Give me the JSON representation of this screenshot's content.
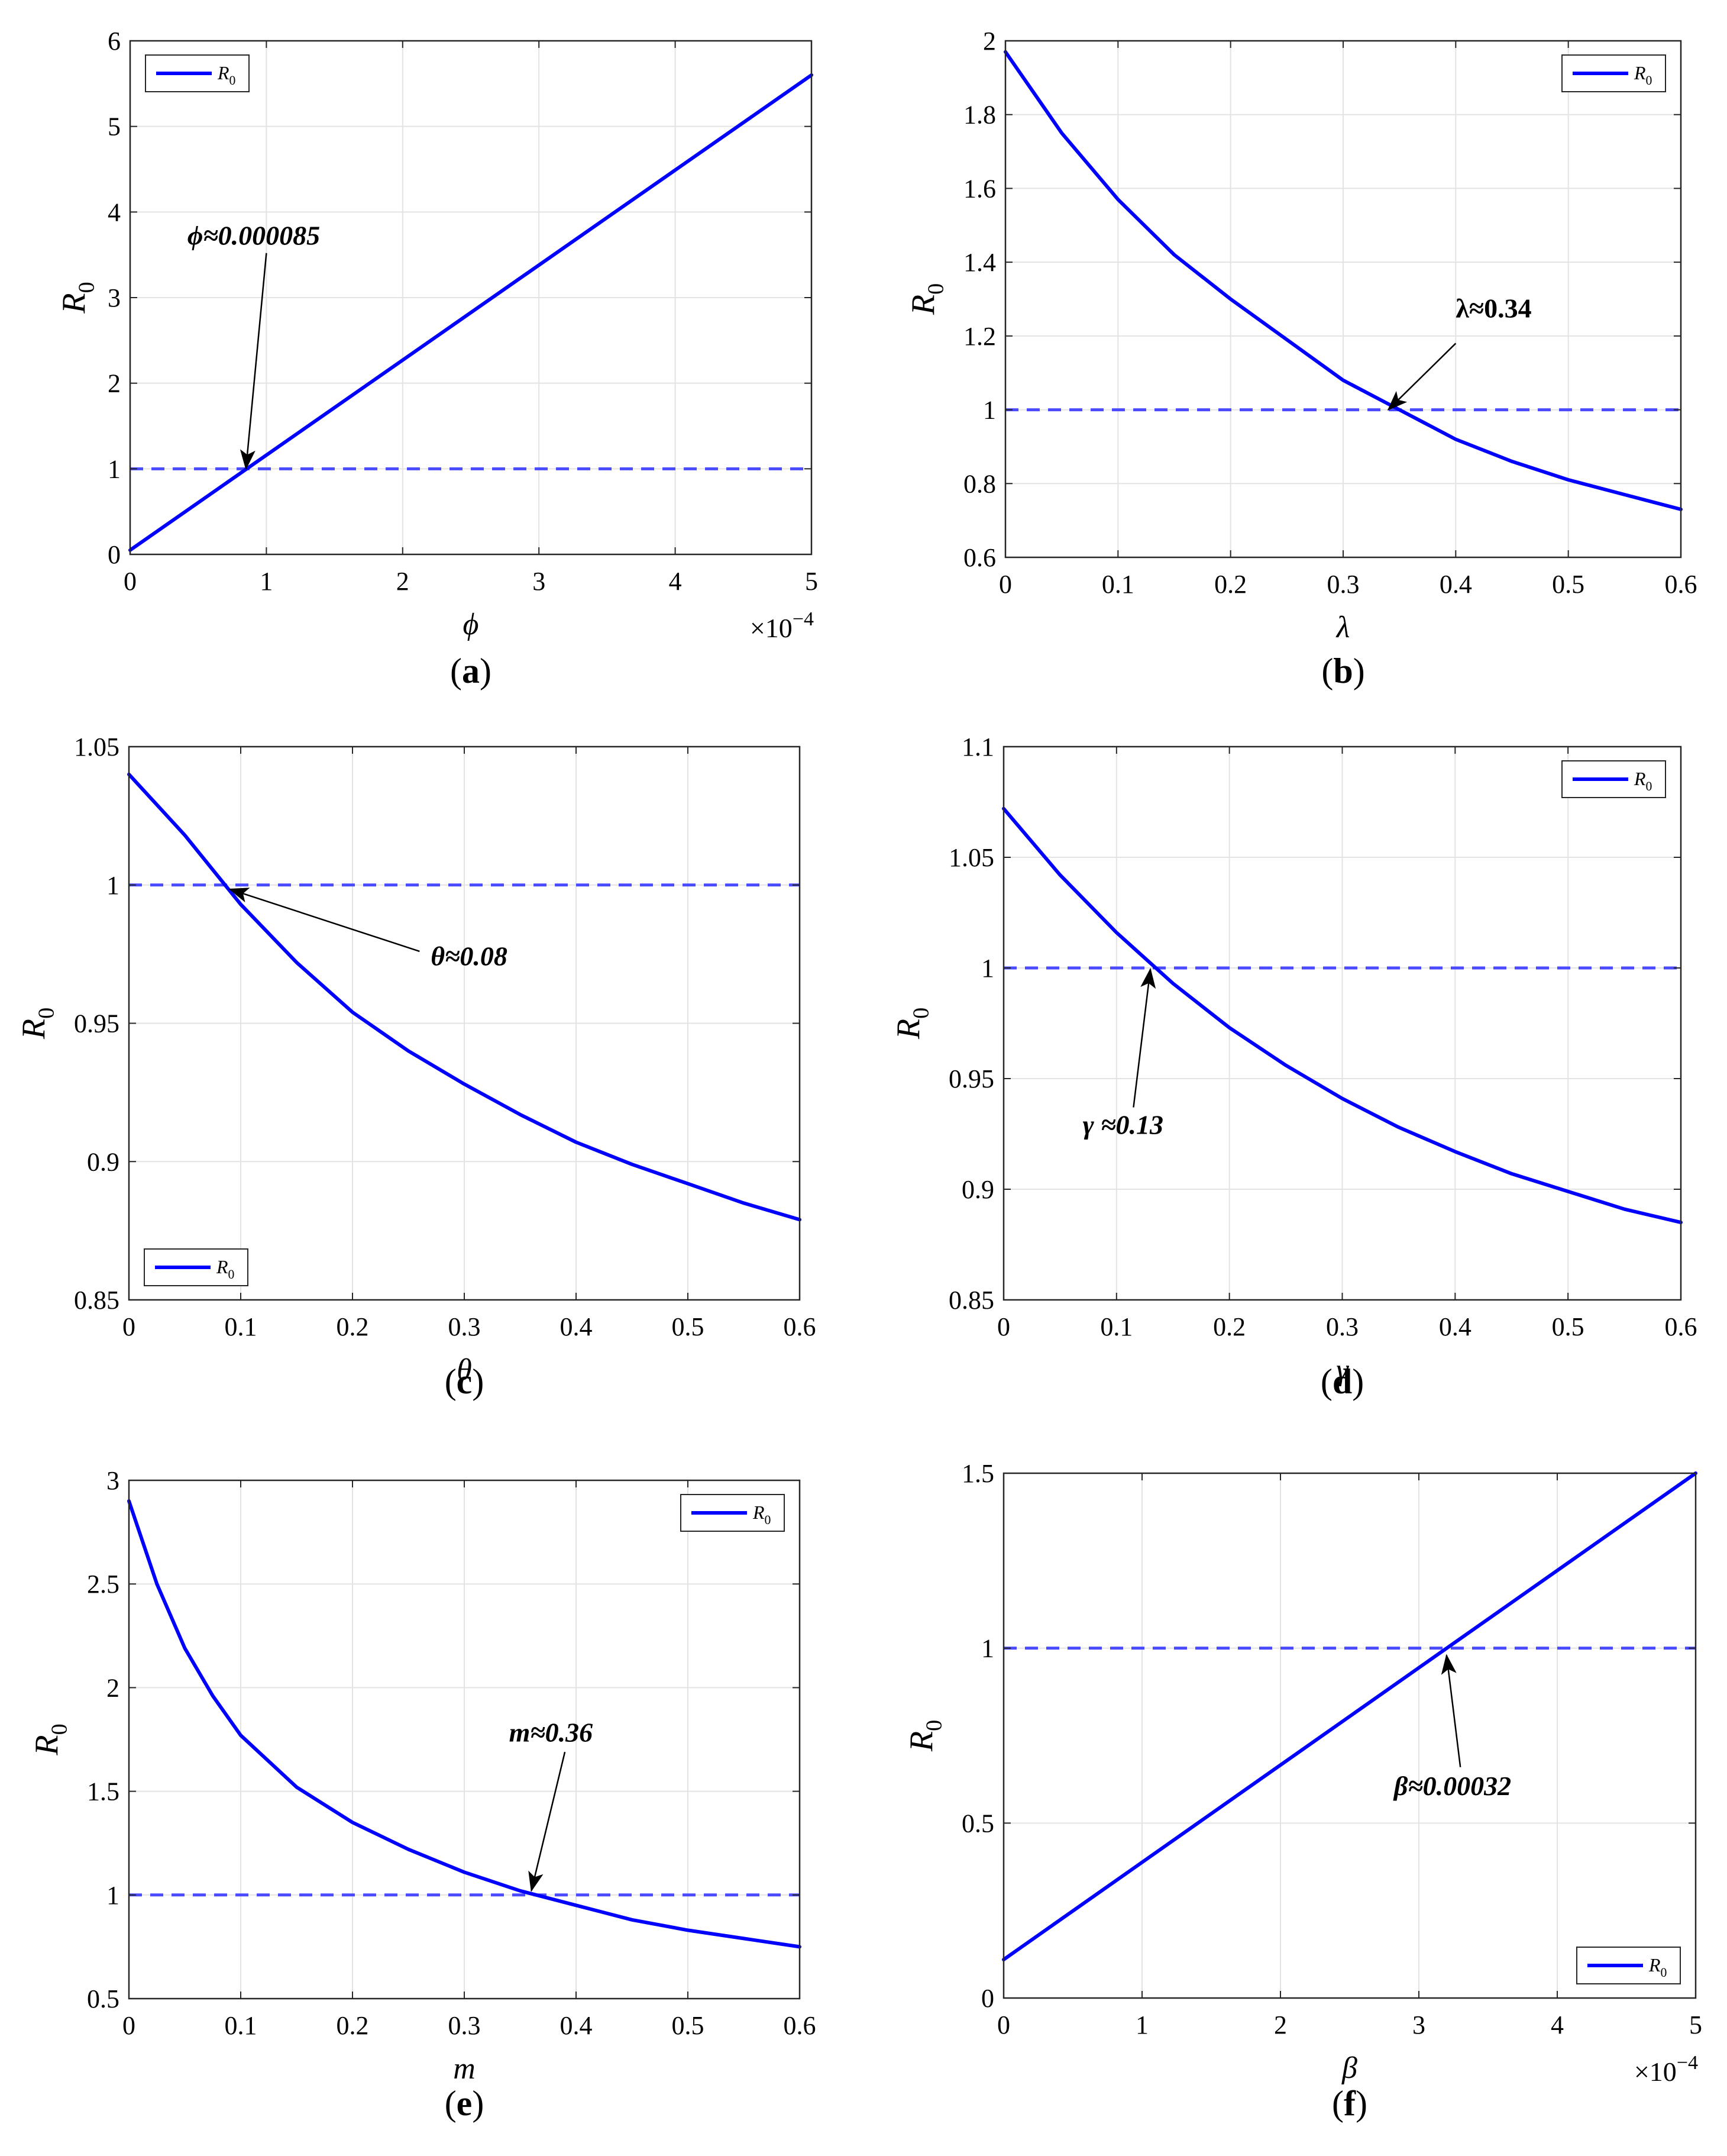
{
  "figure_colors": {
    "line": "#0000ff",
    "threshold": "#4a4aff",
    "grid": "#e3e3e3",
    "axis": "#262626",
    "arrow": "#000000"
  },
  "chart_data": [
    {
      "panel": "(a)",
      "type": "line",
      "title": "",
      "xlabel": "ϕ",
      "ylabel": "R0",
      "x_multiplier": "×10^-4",
      "xlim": [
        0,
        5
      ],
      "ylim": [
        0,
        6
      ],
      "xticks": [
        0,
        1,
        2,
        3,
        4,
        5
      ],
      "xtick_labels": [
        "0",
        "1",
        "2",
        "3",
        "4",
        "5"
      ],
      "yticks": [
        0,
        1,
        2,
        3,
        4,
        5,
        6
      ],
      "ytick_labels": [
        "0",
        "1",
        "2",
        "3",
        "4",
        "5",
        "6"
      ],
      "grid": true,
      "legend": {
        "label": "R0",
        "position": "top-left"
      },
      "series": [
        {
          "name": "R0",
          "x": [
            0,
            5
          ],
          "y": [
            0.05,
            5.6
          ]
        }
      ],
      "threshold": {
        "y": 1,
        "style": "dashed"
      },
      "annotation": {
        "label": "ϕ≈0.000085",
        "point": [
          0.85,
          1.0
        ],
        "text_at": [
          0.95,
          3.7
        ],
        "style": "bold-italic"
      }
    },
    {
      "panel": "(b)",
      "type": "line",
      "title": "",
      "xlabel": "λ",
      "ylabel": "R0",
      "xlim": [
        0,
        0.6
      ],
      "ylim": [
        0.6,
        2.0
      ],
      "xticks": [
        0,
        0.1,
        0.2,
        0.3,
        0.4,
        0.5,
        0.6
      ],
      "xtick_labels": [
        "0",
        "0.1",
        "0.2",
        "0.3",
        "0.4",
        "0.5",
        "0.6"
      ],
      "yticks": [
        0.6,
        0.8,
        1.0,
        1.2,
        1.4,
        1.6,
        1.8,
        2.0
      ],
      "ytick_labels": [
        "0.6",
        "0.8",
        "1",
        "1.2",
        "1.4",
        "1.6",
        "1.8",
        "2"
      ],
      "grid": true,
      "legend": {
        "label": "R0",
        "position": "top-right"
      },
      "series": [
        {
          "name": "R0",
          "x": [
            0,
            0.05,
            0.1,
            0.15,
            0.2,
            0.25,
            0.3,
            0.35,
            0.4,
            0.45,
            0.5,
            0.55,
            0.6
          ],
          "y": [
            1.97,
            1.75,
            1.57,
            1.42,
            1.3,
            1.19,
            1.08,
            1.0,
            0.92,
            0.86,
            0.81,
            0.77,
            0.73
          ]
        }
      ],
      "threshold": {
        "y": 1,
        "style": "dashed"
      },
      "annotation": {
        "label": "λ≈0.34",
        "point": [
          0.34,
          1.0
        ],
        "text_at": [
          0.44,
          1.28
        ],
        "style": "bold"
      }
    },
    {
      "panel": "(c)",
      "type": "line",
      "title": "",
      "xlabel": "θ",
      "ylabel": "R0",
      "xlim": [
        0,
        0.6
      ],
      "ylim": [
        0.85,
        1.05
      ],
      "xticks": [
        0,
        0.1,
        0.2,
        0.3,
        0.4,
        0.5,
        0.6
      ],
      "xtick_labels": [
        "0",
        "0.1",
        "0.2",
        "0.3",
        "0.4",
        "0.5",
        "0.6"
      ],
      "yticks": [
        0.85,
        0.9,
        0.95,
        1.0,
        1.05
      ],
      "ytick_labels": [
        "0.85",
        "0.9",
        "0.95",
        "1",
        "1.05"
      ],
      "grid": true,
      "legend": {
        "label": "R0",
        "position": "bottom-left"
      },
      "series": [
        {
          "name": "R0",
          "x": [
            0,
            0.05,
            0.1,
            0.15,
            0.2,
            0.25,
            0.3,
            0.35,
            0.4,
            0.45,
            0.5,
            0.55,
            0.6
          ],
          "y": [
            1.04,
            1.018,
            0.993,
            0.972,
            0.954,
            0.94,
            0.928,
            0.917,
            0.907,
            0.899,
            0.892,
            0.885,
            0.879
          ]
        }
      ],
      "threshold": {
        "y": 1,
        "style": "dashed"
      },
      "annotation": {
        "label": "θ≈0.08",
        "point": [
          0.09,
          0.9985
        ],
        "text_at": [
          0.27,
          0.987
        ],
        "style": "bold-italic"
      }
    },
    {
      "panel": "(d)",
      "type": "line",
      "title": "",
      "xlabel": "γ",
      "ylabel": "R0",
      "xlim": [
        0,
        0.6
      ],
      "ylim": [
        0.85,
        1.1
      ],
      "xticks": [
        0,
        0.1,
        0.2,
        0.3,
        0.4,
        0.5,
        0.6
      ],
      "xtick_labels": [
        "0",
        "0.1",
        "0.2",
        "0.3",
        "0.4",
        "0.5",
        "0.6"
      ],
      "yticks": [
        0.85,
        0.9,
        0.95,
        1.0,
        1.05,
        1.1
      ],
      "ytick_labels": [
        "0.85",
        "0.9",
        "0.95",
        "1",
        "1.05",
        "1.1"
      ],
      "grid": true,
      "legend": {
        "label": "R0",
        "position": "top-right"
      },
      "series": [
        {
          "name": "R0",
          "x": [
            0,
            0.05,
            0.1,
            0.15,
            0.2,
            0.25,
            0.3,
            0.35,
            0.4,
            0.45,
            0.5,
            0.55,
            0.6
          ],
          "y": [
            1.072,
            1.042,
            1.016,
            0.993,
            0.973,
            0.956,
            0.941,
            0.928,
            0.917,
            0.907,
            0.899,
            0.891,
            0.885
          ]
        }
      ],
      "threshold": {
        "y": 1,
        "style": "dashed"
      },
      "annotation": {
        "label": "γ ≈0.13",
        "point": [
          0.13,
          0.9995
        ],
        "text_at": [
          0.115,
          0.929
        ],
        "style": "bold-italic"
      }
    },
    {
      "panel": "(e)",
      "type": "line",
      "title": "",
      "xlabel": "m",
      "ylabel": "R0",
      "xlim": [
        0,
        0.6
      ],
      "ylim": [
        0.5,
        3.0
      ],
      "xticks": [
        0,
        0.1,
        0.2,
        0.3,
        0.4,
        0.5,
        0.6
      ],
      "xtick_labels": [
        "0",
        "0.1",
        "0.2",
        "0.3",
        "0.4",
        "0.5",
        "0.6"
      ],
      "yticks": [
        0.5,
        1.0,
        1.5,
        2.0,
        2.5,
        3.0
      ],
      "ytick_labels": [
        "0.5",
        "1",
        "1.5",
        "2",
        "2.5",
        "3"
      ],
      "grid": true,
      "legend": {
        "label": "R0",
        "position": "top-right"
      },
      "series": [
        {
          "name": "R0",
          "x": [
            0,
            0.025,
            0.05,
            0.075,
            0.1,
            0.15,
            0.2,
            0.25,
            0.3,
            0.35,
            0.4,
            0.45,
            0.5,
            0.55,
            0.6
          ],
          "y": [
            2.9,
            2.5,
            2.19,
            1.96,
            1.77,
            1.52,
            1.35,
            1.22,
            1.11,
            1.02,
            0.95,
            0.88,
            0.83,
            0.79,
            0.75
          ]
        }
      ],
      "threshold": {
        "y": 1,
        "style": "dashed"
      },
      "annotation": {
        "label": "m≈0.36",
        "point": [
          0.36,
          1.02
        ],
        "text_at": [
          0.38,
          1.8
        ],
        "style": "bold-italic"
      }
    },
    {
      "panel": "(f)",
      "type": "line",
      "title": "",
      "xlabel": "β",
      "ylabel": "R0",
      "x_multiplier": "×10^-4",
      "xlim": [
        0,
        5
      ],
      "ylim": [
        0,
        1.5
      ],
      "xticks": [
        0,
        1,
        2,
        3,
        4,
        5
      ],
      "xtick_labels": [
        "0",
        "1",
        "2",
        "3",
        "4",
        "5"
      ],
      "yticks": [
        0,
        0.5,
        1.0,
        1.5
      ],
      "ytick_labels": [
        "0",
        "0.5",
        "1",
        "1.5"
      ],
      "grid": true,
      "legend": {
        "label": "R0",
        "position": "bottom-right"
      },
      "series": [
        {
          "name": "R0",
          "x": [
            0,
            5
          ],
          "y": [
            0.11,
            1.5
          ]
        }
      ],
      "threshold": {
        "y": 1,
        "style": "dashed"
      },
      "annotation": {
        "label": "β≈0.00032",
        "point": [
          3.2,
          0.98
        ],
        "text_at": [
          3.2,
          0.58
        ],
        "style": "bold-italic"
      }
    }
  ]
}
